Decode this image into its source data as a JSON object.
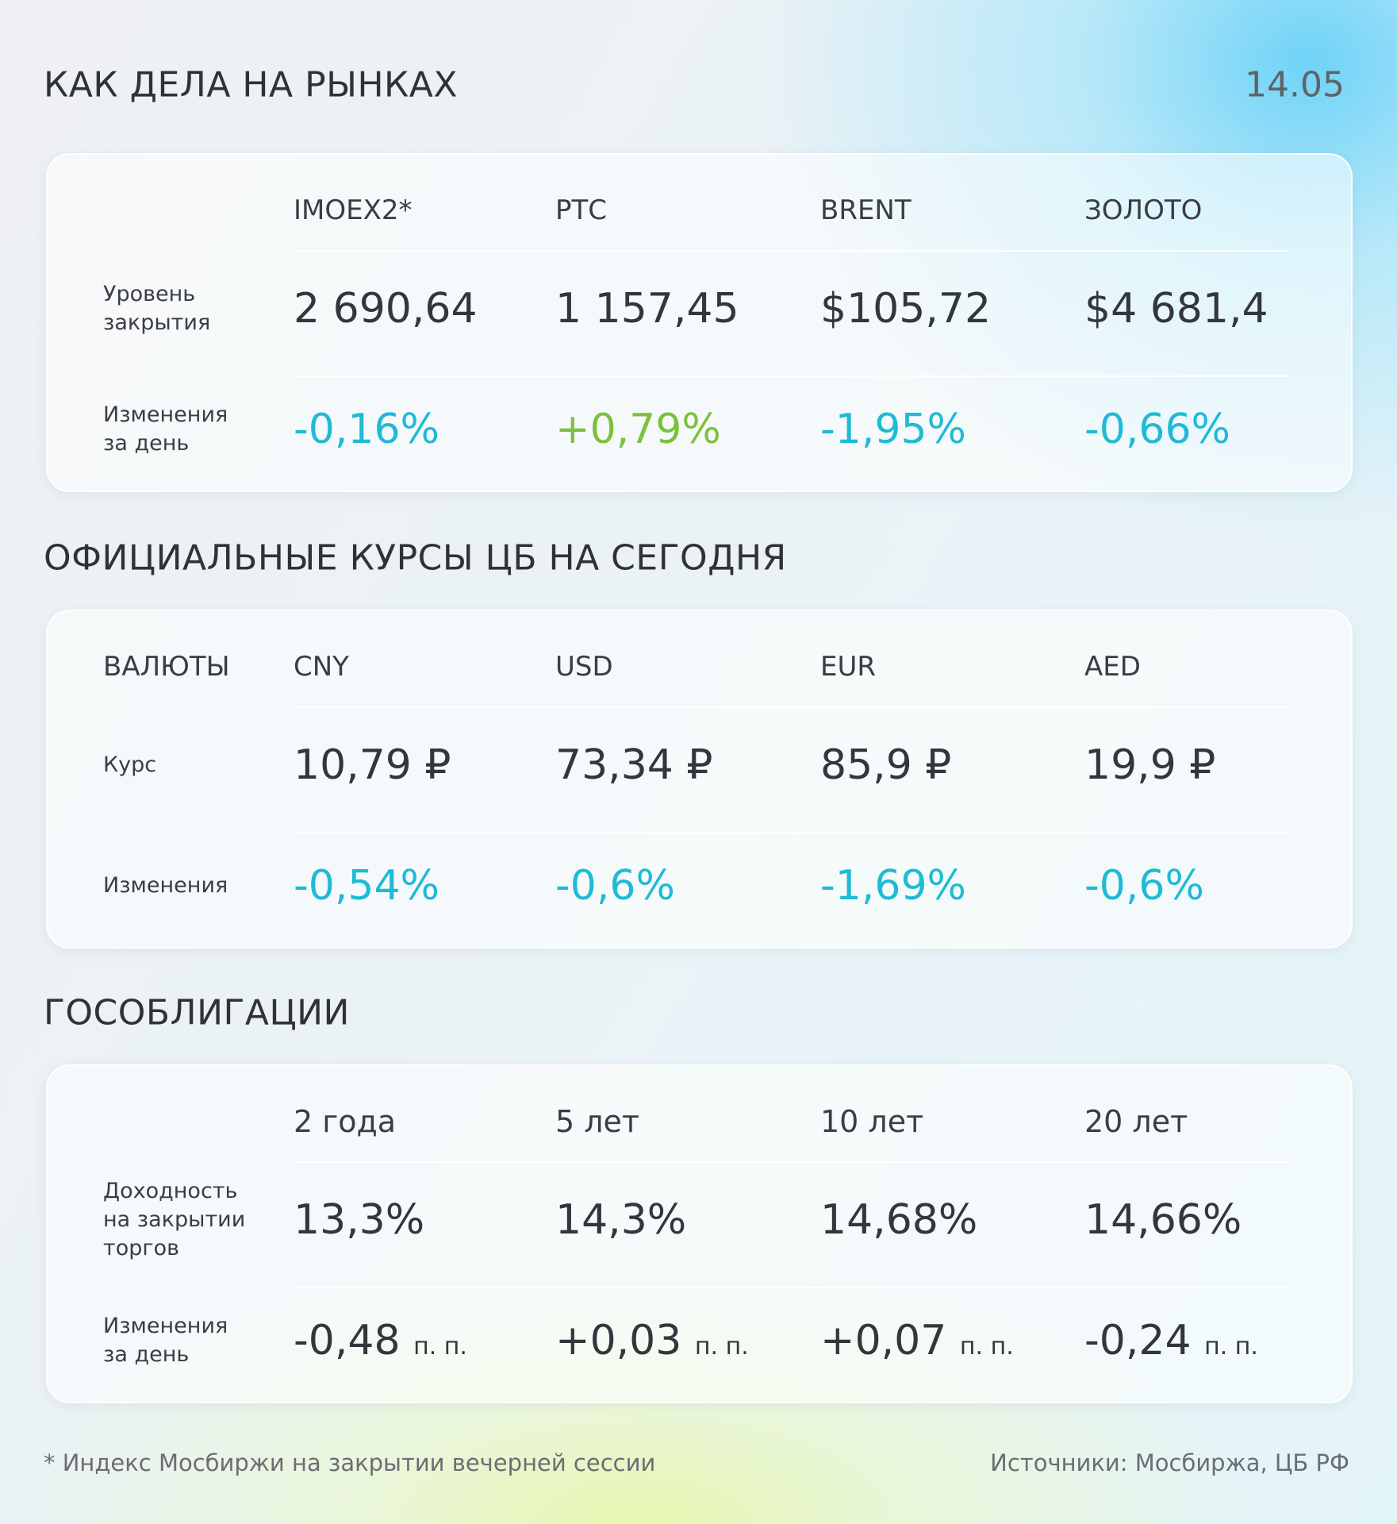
{
  "header": {
    "title": "КАК ДЕЛА НА РЫНКАХ",
    "date": "14.05"
  },
  "markets": {
    "columns": [
      "IMOEX2*",
      "РТС",
      "BRENT",
      "ЗОЛОТО"
    ],
    "rows": [
      {
        "label": "Уровень\nзакрытия",
        "values": [
          "2 690,64",
          "1 157,45",
          "$105,72",
          "$4 681,4"
        ]
      },
      {
        "label": "Изменения\nза день",
        "values": [
          "-0,16%",
          "+0,79%",
          "-1,95%",
          "-0,66%"
        ]
      }
    ]
  },
  "rates": {
    "title": "ОФИЦИАЛЬНЫЕ КУРСЫ ЦБ НА СЕГОДНЯ",
    "corner": "ВАЛЮТЫ",
    "columns": [
      "CNY",
      "USD",
      "EUR",
      "AED"
    ],
    "rows": [
      {
        "label": "Курс",
        "values": [
          "10,79 ₽",
          "73,34 ₽",
          "85,9 ₽",
          "19,9 ₽"
        ]
      },
      {
        "label": "Изменения",
        "values": [
          "-0,54%",
          "-0,6%",
          "-1,69%",
          "-0,6%"
        ]
      }
    ]
  },
  "bonds": {
    "title": "ГОСОБЛИГАЦИИ",
    "columns": [
      "2 года",
      "5 лет",
      "10 лет",
      "20 лет"
    ],
    "rows": [
      {
        "label": "Доходность\nна закрытии\nторгов",
        "values": [
          "13,3%",
          "14,3%",
          "14,68%",
          "14,66%"
        ]
      },
      {
        "label": "Изменения\nза день",
        "values": [
          "-0,48",
          "+0,03",
          "+0,07",
          "-0,24"
        ],
        "units": [
          "п. п.",
          "п. п.",
          "п. п.",
          "п. п."
        ]
      }
    ]
  },
  "footer": {
    "note": "* Индекс Мосбиржи на закрытии вечерней сессии",
    "sources": "Источники: Мосбиржа, ЦБ РФ"
  }
}
